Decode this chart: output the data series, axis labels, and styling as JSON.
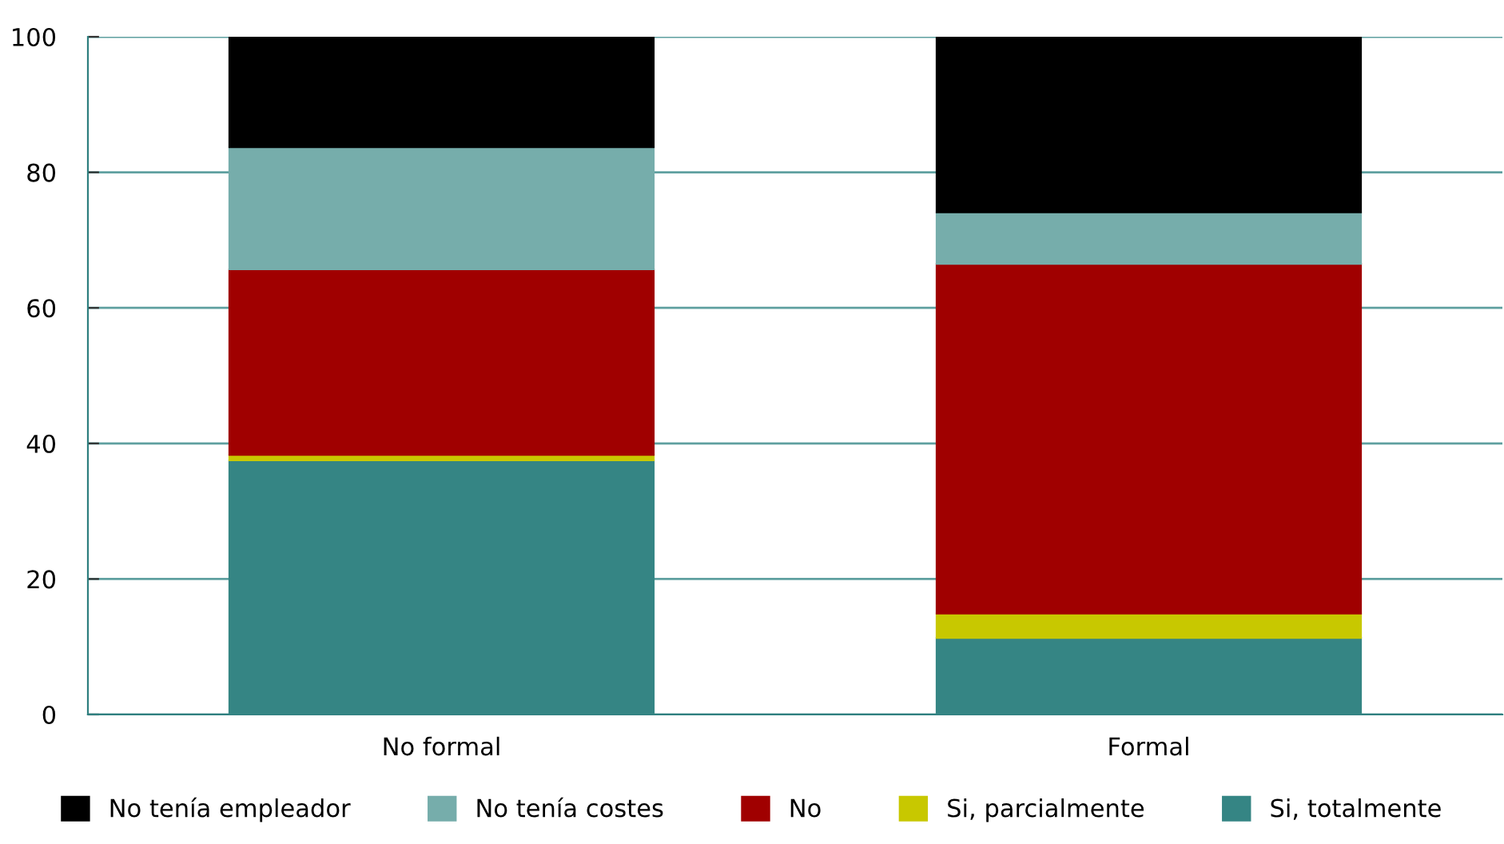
{
  "chart_data": {
    "type": "bar",
    "stacked": true,
    "categories": [
      "No formal",
      "Formal"
    ],
    "series": [
      {
        "name": "Si, totalmente",
        "color": "#358584",
        "values": [
          37.5,
          11.3
        ]
      },
      {
        "name": "Si, parcialmente",
        "color": "#c8c800",
        "values": [
          0.8,
          3.6
        ]
      },
      {
        "name": "No",
        "color": "#a00000",
        "values": [
          27.4,
          51.6
        ]
      },
      {
        "name": "No tenía costes",
        "color": "#76adab",
        "values": [
          18.0,
          7.6
        ]
      },
      {
        "name": "No tenía empleador",
        "color": "#000000",
        "values": [
          16.3,
          25.9
        ]
      }
    ],
    "ylim": [
      0,
      100
    ],
    "yticks": [
      0,
      20,
      40,
      60,
      80,
      100
    ],
    "grid": "y",
    "legend": "bottom"
  }
}
